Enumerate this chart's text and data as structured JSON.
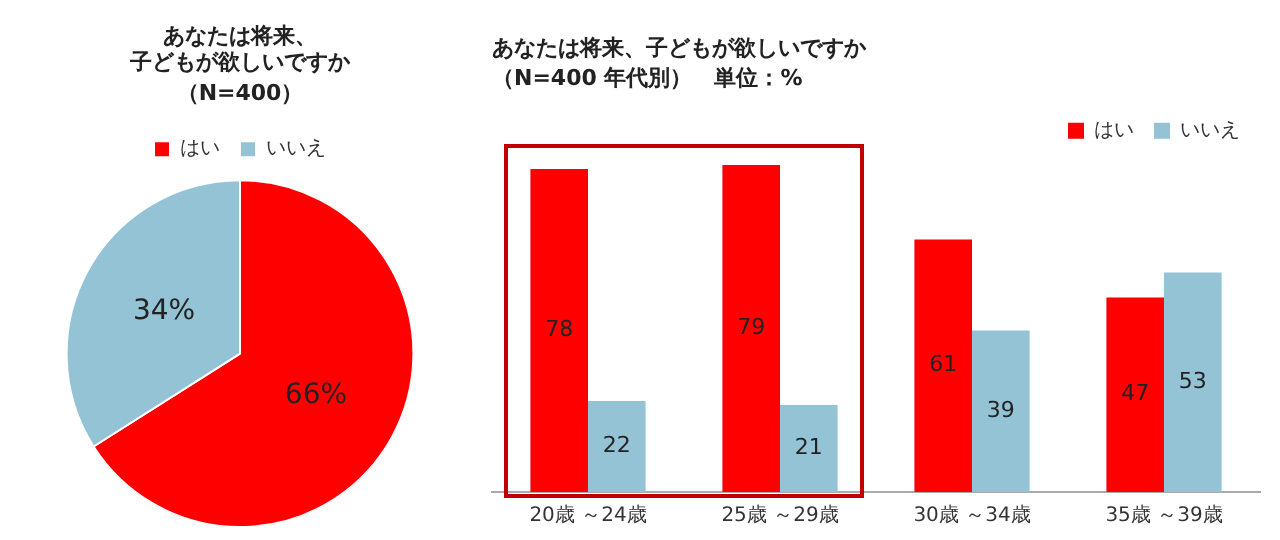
{
  "chart_data": [
    {
      "type": "pie",
      "title": "あなたは将来、子どもが欲しいですか",
      "subtitle": "（N=400）",
      "categories": [
        "はい",
        "いいえ"
      ],
      "values": [
        66,
        34
      ],
      "value_labels": [
        "66%",
        "34%"
      ],
      "colors": [
        "#ff0000",
        "#93c3d5"
      ],
      "legend": "top"
    },
    {
      "type": "bar",
      "title": "あなたは将来、子どもが欲しいですか",
      "subtitle": "（N=400 年代別）　単位：%",
      "categories": [
        "20歳 ～24歳",
        "25歳 ～29歳",
        "30歳 ～34歳",
        "35歳 ～39歳"
      ],
      "series": [
        {
          "name": "はい",
          "color": "#ff0000",
          "values": [
            78,
            79,
            61,
            47
          ]
        },
        {
          "name": "いいえ",
          "color": "#93c3d5",
          "values": [
            22,
            21,
            39,
            53
          ]
        }
      ],
      "legend": "top right",
      "grid": false,
      "data_labels": true
    }
  ]
}
